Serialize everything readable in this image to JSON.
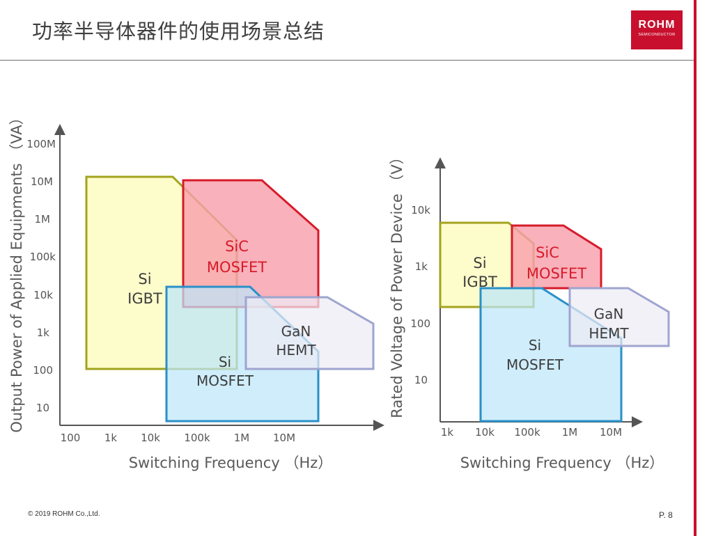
{
  "header": {
    "title": "功率半导体器件的使用场景总结",
    "logo_main": "ROHM",
    "logo_sub": "SEMICONDUCTOR"
  },
  "footer": {
    "copyright": "© 2019 ROHM Co.,Ltd.",
    "page": "P. 8"
  },
  "colors": {
    "accent": "#c8102e",
    "si_igbt_fill": "#fdfcc2",
    "si_igbt_stroke": "#a3a31e",
    "sic_mosfet_fill": "#f8a0ac",
    "sic_mosfet_stroke": "#d71a2a",
    "si_mosfet_fill": "#c2e9fb",
    "si_mosfet_stroke": "#2a90c8",
    "gan_hemt_fill": "#edecf4",
    "gan_hemt_stroke": "#9ea5cf"
  },
  "diagram1": {
    "ylabel": "Output Power of Applied Equipments （VA）",
    "xlabel": "Switching Frequency （Hz）",
    "y_ticks": [
      "100M",
      "10M",
      "1M",
      "100k",
      "10k",
      "1k",
      "100",
      "10"
    ],
    "x_ticks": [
      "100",
      "1k",
      "10k",
      "100k",
      "1M",
      "10M"
    ],
    "regions": {
      "si_igbt": [
        "Si",
        "IGBT"
      ],
      "sic_mosfet": [
        "SiC",
        "MOSFET"
      ],
      "si_mosfet": [
        "Si",
        "MOSFET"
      ],
      "gan_hemt": [
        "GaN",
        "HEMT"
      ]
    }
  },
  "diagram2": {
    "ylabel": "Rated Voltage of Power Device （V）",
    "xlabel": "Switching Frequency （Hz）",
    "y_ticks": [
      "10k",
      "1k",
      "100",
      "10"
    ],
    "x_ticks": [
      "1k",
      "10k",
      "100k",
      "1M",
      "10M"
    ],
    "regions": {
      "si_igbt": [
        "Si",
        "IGBT"
      ],
      "sic_mosfet": [
        "SiC",
        "MOSFET"
      ],
      "si_mosfet": [
        "Si",
        "MOSFET"
      ],
      "gan_hemt": [
        "GaN",
        "HEMT"
      ]
    }
  }
}
